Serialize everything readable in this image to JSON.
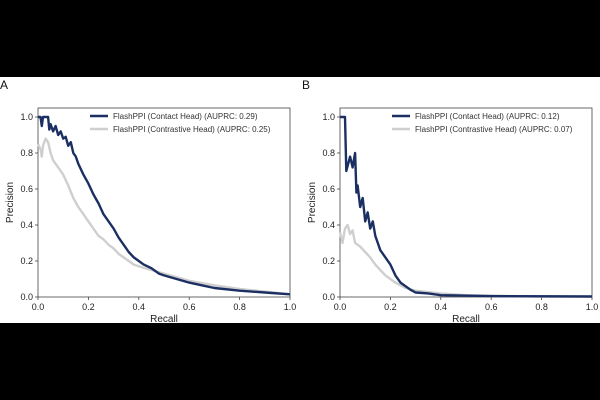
{
  "chart_data": [
    {
      "type": "line",
      "panel_label": "A",
      "xlabel": "Recall",
      "ylabel": "Precision",
      "xlim": [
        0,
        1
      ],
      "ylim": [
        0,
        1.05
      ],
      "xticks": [
        "0.0",
        "0.2",
        "0.4",
        "0.6",
        "0.8",
        "1.0"
      ],
      "yticks": [
        "0.0",
        "0.2",
        "0.4",
        "0.6",
        "0.8",
        "1.0"
      ],
      "legend_position": "top-right",
      "series": [
        {
          "name": "FlashPPI (Contact Head) (AUPRC: 0.29)",
          "color": "#1b2f63",
          "points": [
            [
              0.0,
              1.0
            ],
            [
              0.01,
              1.0
            ],
            [
              0.015,
              0.95
            ],
            [
              0.02,
              1.0
            ],
            [
              0.04,
              1.0
            ],
            [
              0.045,
              0.93
            ],
            [
              0.05,
              0.96
            ],
            [
              0.06,
              0.92
            ],
            [
              0.07,
              0.95
            ],
            [
              0.08,
              0.9
            ],
            [
              0.09,
              0.92
            ],
            [
              0.1,
              0.88
            ],
            [
              0.11,
              0.89
            ],
            [
              0.12,
              0.84
            ],
            [
              0.13,
              0.86
            ],
            [
              0.14,
              0.8
            ],
            [
              0.15,
              0.78
            ],
            [
              0.16,
              0.74
            ],
            [
              0.18,
              0.68
            ],
            [
              0.2,
              0.63
            ],
            [
              0.22,
              0.57
            ],
            [
              0.24,
              0.52
            ],
            [
              0.26,
              0.46
            ],
            [
              0.28,
              0.42
            ],
            [
              0.3,
              0.38
            ],
            [
              0.32,
              0.33
            ],
            [
              0.34,
              0.29
            ],
            [
              0.36,
              0.25
            ],
            [
              0.38,
              0.22
            ],
            [
              0.4,
              0.2
            ],
            [
              0.42,
              0.18
            ],
            [
              0.45,
              0.16
            ],
            [
              0.48,
              0.13
            ],
            [
              0.5,
              0.12
            ],
            [
              0.55,
              0.1
            ],
            [
              0.6,
              0.08
            ],
            [
              0.65,
              0.065
            ],
            [
              0.7,
              0.05
            ],
            [
              0.8,
              0.035
            ],
            [
              0.9,
              0.025
            ],
            [
              1.0,
              0.015
            ]
          ]
        },
        {
          "name": "FlashPPI (Contrastive Head) (AUPRC: 0.25)",
          "color": "#cfcfcf",
          "points": [
            [
              0.0,
              0.85
            ],
            [
              0.01,
              0.82
            ],
            [
              0.015,
              0.78
            ],
            [
              0.02,
              0.84
            ],
            [
              0.03,
              0.88
            ],
            [
              0.04,
              0.86
            ],
            [
              0.05,
              0.8
            ],
            [
              0.06,
              0.76
            ],
            [
              0.08,
              0.72
            ],
            [
              0.1,
              0.68
            ],
            [
              0.12,
              0.62
            ],
            [
              0.14,
              0.55
            ],
            [
              0.16,
              0.5
            ],
            [
              0.18,
              0.46
            ],
            [
              0.2,
              0.42
            ],
            [
              0.22,
              0.38
            ],
            [
              0.24,
              0.34
            ],
            [
              0.26,
              0.32
            ],
            [
              0.28,
              0.29
            ],
            [
              0.3,
              0.27
            ],
            [
              0.32,
              0.24
            ],
            [
              0.34,
              0.22
            ],
            [
              0.36,
              0.2
            ],
            [
              0.38,
              0.18
            ],
            [
              0.4,
              0.17
            ],
            [
              0.45,
              0.15
            ],
            [
              0.5,
              0.13
            ],
            [
              0.55,
              0.11
            ],
            [
              0.6,
              0.09
            ],
            [
              0.7,
              0.065
            ],
            [
              0.8,
              0.045
            ],
            [
              0.9,
              0.03
            ],
            [
              1.0,
              0.015
            ]
          ]
        }
      ]
    },
    {
      "type": "line",
      "panel_label": "B",
      "xlabel": "Recall",
      "ylabel": "Precision",
      "xlim": [
        0,
        1
      ],
      "ylim": [
        0,
        1.05
      ],
      "xticks": [
        "0.0",
        "0.2",
        "0.4",
        "0.6",
        "0.8",
        "1.0"
      ],
      "yticks": [
        "0.0",
        "0.2",
        "0.4",
        "0.6",
        "0.8",
        "1.0"
      ],
      "legend_position": "top-right",
      "series": [
        {
          "name": "FlashPPI (Contact Head) (AUPRC: 0.12)",
          "color": "#1b2f63",
          "points": [
            [
              0.0,
              1.0
            ],
            [
              0.02,
              1.0
            ],
            [
              0.025,
              0.7
            ],
            [
              0.04,
              0.78
            ],
            [
              0.05,
              0.72
            ],
            [
              0.06,
              0.8
            ],
            [
              0.065,
              0.58
            ],
            [
              0.07,
              0.62
            ],
            [
              0.08,
              0.5
            ],
            [
              0.09,
              0.55
            ],
            [
              0.1,
              0.42
            ],
            [
              0.11,
              0.47
            ],
            [
              0.12,
              0.38
            ],
            [
              0.13,
              0.42
            ],
            [
              0.14,
              0.34
            ],
            [
              0.15,
              0.3
            ],
            [
              0.16,
              0.26
            ],
            [
              0.18,
              0.22
            ],
            [
              0.2,
              0.18
            ],
            [
              0.22,
              0.12
            ],
            [
              0.24,
              0.08
            ],
            [
              0.26,
              0.06
            ],
            [
              0.28,
              0.04
            ],
            [
              0.3,
              0.025
            ],
            [
              0.35,
              0.02
            ],
            [
              0.4,
              0.01
            ],
            [
              0.6,
              0.005
            ],
            [
              1.0,
              0.003
            ]
          ]
        },
        {
          "name": "FlashPPI (Contrastive Head) (AUPRC: 0.07)",
          "color": "#cfcfcf",
          "points": [
            [
              0.0,
              0.36
            ],
            [
              0.01,
              0.3
            ],
            [
              0.02,
              0.38
            ],
            [
              0.03,
              0.4
            ],
            [
              0.04,
              0.35
            ],
            [
              0.05,
              0.37
            ],
            [
              0.06,
              0.3
            ],
            [
              0.08,
              0.28
            ],
            [
              0.1,
              0.25
            ],
            [
              0.12,
              0.22
            ],
            [
              0.14,
              0.18
            ],
            [
              0.16,
              0.15
            ],
            [
              0.18,
              0.12
            ],
            [
              0.2,
              0.1
            ],
            [
              0.22,
              0.08
            ],
            [
              0.26,
              0.05
            ],
            [
              0.3,
              0.035
            ],
            [
              0.4,
              0.02
            ],
            [
              0.5,
              0.01
            ],
            [
              0.6,
              0.006
            ],
            [
              0.8,
              0.003
            ],
            [
              1.0,
              0.002
            ]
          ]
        }
      ]
    }
  ]
}
